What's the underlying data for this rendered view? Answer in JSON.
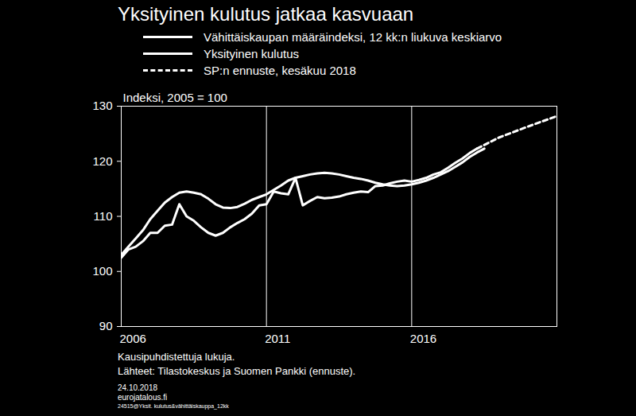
{
  "chart_data": {
    "type": "line",
    "title": "Yksityinen kulutus jatkaa kasvuaan",
    "ylabel": "Indeksi, 2005 = 100",
    "xlim": [
      2006,
      2021
    ],
    "xticks": [
      2006,
      2011,
      2016
    ],
    "ylim": [
      90,
      130
    ],
    "yticks": [
      90,
      100,
      110,
      120,
      130
    ],
    "grid": "x",
    "series": [
      {
        "name": "Vähittäiskaupan määräindeksi, 12 kk:n liukuva keskiarvo",
        "color": "#ffffff",
        "line_style": "solid",
        "x": [
          2006.0,
          2006.25,
          2006.5,
          2006.75,
          2007.0,
          2007.25,
          2007.5,
          2007.75,
          2008.0,
          2008.25,
          2008.5,
          2008.75,
          2009.0,
          2009.25,
          2009.5,
          2009.75,
          2010.0,
          2010.25,
          2010.5,
          2010.75,
          2011.0,
          2011.25,
          2011.5,
          2011.75,
          2012.0,
          2012.25,
          2012.5,
          2012.75,
          2013.0,
          2013.25,
          2013.5,
          2013.75,
          2014.0,
          2014.25,
          2014.5,
          2014.75,
          2015.0,
          2015.25,
          2015.5,
          2015.75,
          2016.0,
          2016.25,
          2016.5,
          2016.75,
          2017.0,
          2017.25,
          2017.5,
          2017.75,
          2018.0,
          2018.25,
          2018.5
        ],
        "values": [
          103,
          104.5,
          106,
          107.5,
          109.5,
          111,
          112.5,
          113.5,
          114.3,
          114.5,
          114.3,
          114,
          113.2,
          112.2,
          111.6,
          111.5,
          111.7,
          112.3,
          113,
          113.5,
          114,
          114.8,
          115.6,
          116.5,
          117,
          117.3,
          117.6,
          117.8,
          117.9,
          117.8,
          117.6,
          117.3,
          117,
          116.8,
          116.5,
          116.1,
          115.8,
          115.6,
          115.5,
          115.6,
          115.8,
          116.1,
          116.5,
          117,
          117.6,
          118.2,
          119,
          119.8,
          120.8,
          121.6,
          122.3
        ]
      },
      {
        "name": "Yksityinen kulutus",
        "color": "#ffffff",
        "line_style": "solid",
        "x": [
          2006.0,
          2006.25,
          2006.5,
          2006.75,
          2007.0,
          2007.25,
          2007.5,
          2007.75,
          2008.0,
          2008.25,
          2008.5,
          2008.75,
          2009.0,
          2009.25,
          2009.5,
          2009.75,
          2010.0,
          2010.25,
          2010.5,
          2010.75,
          2011.0,
          2011.25,
          2011.5,
          2011.75,
          2012.0,
          2012.25,
          2012.5,
          2012.75,
          2013.0,
          2013.25,
          2013.5,
          2013.75,
          2014.0,
          2014.25,
          2014.5,
          2014.75,
          2015.0,
          2015.25,
          2015.5,
          2015.75,
          2016.0,
          2016.25,
          2016.5,
          2016.75,
          2017.0,
          2017.25,
          2017.5,
          2017.75,
          2018.0,
          2018.25
        ],
        "values": [
          102.5,
          104,
          104.5,
          105.5,
          107,
          107,
          108.3,
          108.5,
          112.2,
          110,
          109.2,
          108,
          107,
          106.5,
          107,
          108,
          108.8,
          109.5,
          110.5,
          112,
          112.2,
          114.5,
          114.2,
          114,
          117,
          112,
          112.8,
          113.5,
          113.3,
          113.4,
          113.6,
          114,
          114.3,
          114.5,
          114.4,
          115.5,
          115.6,
          116,
          116.3,
          116.5,
          116.3,
          116.6,
          117,
          117.6,
          118,
          118.8,
          119.7,
          120.5,
          121.5,
          122.3
        ]
      },
      {
        "name": "SP:n ennuste, kesäkuu 2018",
        "color": "#ffffff",
        "line_style": "dashed",
        "x": [
          2018.25,
          2019.0,
          2020.0,
          2021.0
        ],
        "values": [
          122.3,
          124.3,
          126.3,
          128.2
        ]
      }
    ],
    "notes": [
      "Kausipuhdistettuja lukuja.",
      "Lähteet: Tilastokeskus ja Suomen Pankki (ennuste)."
    ],
    "footer": [
      "24.10.2018",
      "eurojatalous.fi",
      "24515@Yksit. kulutus&vähittäiskauppa_12kk"
    ]
  }
}
